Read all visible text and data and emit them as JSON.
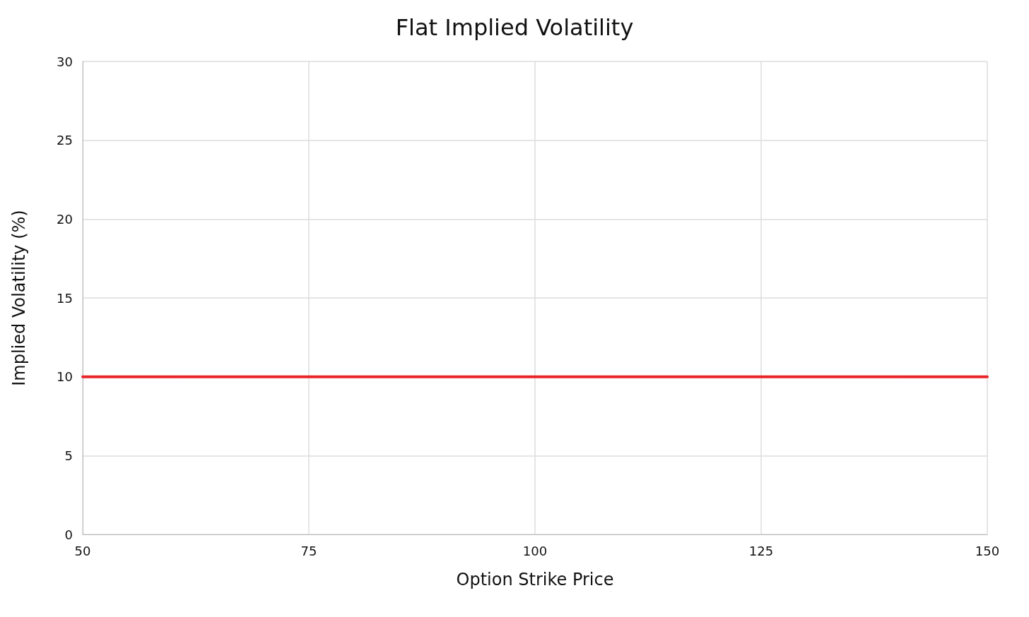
{
  "chart_data": {
    "type": "line",
    "title": "Flat Implied Volatility",
    "xlabel": "Option Strike Price",
    "ylabel": "Implied Volatility (%)",
    "x": [
      50,
      150
    ],
    "series": [
      {
        "color": "#e8262a",
        "values": [
          10,
          10
        ]
      }
    ],
    "xlim": [
      50,
      150
    ],
    "xticks": [
      50,
      75,
      100,
      125,
      150
    ],
    "ylim": [
      0,
      30
    ],
    "yticks": [
      0,
      5,
      10,
      15,
      20,
      25,
      30
    ],
    "grid": true,
    "marker": "none",
    "line_style": "solid"
  }
}
